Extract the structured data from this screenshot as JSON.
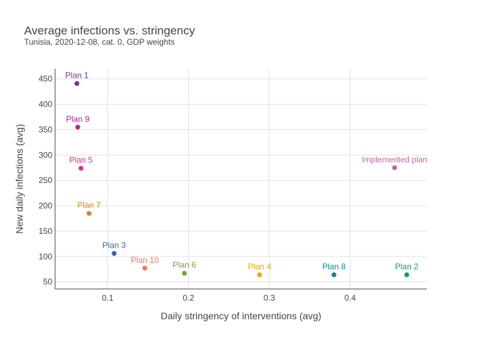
{
  "chart_data": {
    "type": "scatter",
    "title": "Average infections vs. stringency",
    "subtitle": "Tunisia, 2020-12-08, cat. 0, GDP weights",
    "xlabel": "Daily stringency of interventions (avg)",
    "ylabel": "New daily infections (avg)",
    "xlim": [
      0.035,
      0.495
    ],
    "ylim": [
      36,
      470
    ],
    "xticks": [
      0.1,
      0.2,
      0.3,
      0.4
    ],
    "yticks": [
      50,
      100,
      150,
      200,
      250,
      300,
      350,
      400,
      450
    ],
    "grid": true,
    "legend": false,
    "points": [
      {
        "label": "Plan 1",
        "x": 0.062,
        "y": 441,
        "color": "#7B3294"
      },
      {
        "label": "Plan 9",
        "x": 0.063,
        "y": 355,
        "color": "#C51B8A"
      },
      {
        "label": "Plan 5",
        "x": 0.067,
        "y": 274,
        "color": "#E7298A"
      },
      {
        "label": "Plan 7",
        "x": 0.077,
        "y": 185,
        "color": "#E6820E"
      },
      {
        "label": "Plan 3",
        "x": 0.108,
        "y": 106,
        "color": "#3465A4"
      },
      {
        "label": "Plan 10",
        "x": 0.146,
        "y": 77,
        "color": "#FA7361"
      },
      {
        "label": "Plan 6",
        "x": 0.195,
        "y": 67,
        "color": "#6DA83B"
      },
      {
        "label": "Plan 4",
        "x": 0.288,
        "y": 64,
        "color": "#EEA80C"
      },
      {
        "label": "Plan 8",
        "x": 0.38,
        "y": 64,
        "color": "#0E8B8E"
      },
      {
        "label": "Plan 2",
        "x": 0.47,
        "y": 64,
        "color": "#119A77"
      },
      {
        "label": "Implemented plan",
        "x": 0.455,
        "y": 275,
        "color": "#C2649D"
      }
    ]
  }
}
